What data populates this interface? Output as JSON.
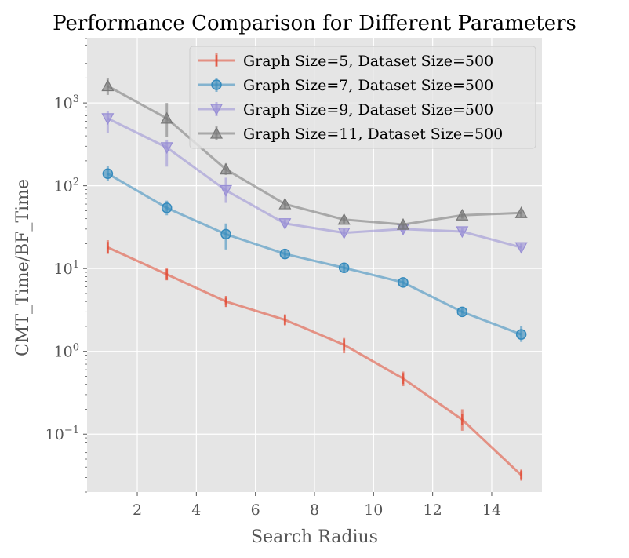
{
  "chart_data": {
    "type": "line",
    "title": "Performance Comparison for Different Parameters",
    "xlabel": "Search Radius",
    "ylabel": "CMT_Time/BF_Time",
    "yscale": "log",
    "xlim": [
      0.3,
      15.7
    ],
    "ylim": [
      0.02,
      6000
    ],
    "x": [
      1,
      3,
      5,
      7,
      9,
      11,
      13,
      15
    ],
    "xticks": [
      2,
      4,
      6,
      8,
      10,
      12,
      14
    ],
    "yticks": [
      {
        "value": 0.1,
        "base": "10",
        "exp": "−1"
      },
      {
        "value": 1,
        "base": "10",
        "exp": "0"
      },
      {
        "value": 10,
        "base": "10",
        "exp": "1"
      },
      {
        "value": 100,
        "base": "10",
        "exp": "2"
      },
      {
        "value": 1000,
        "base": "10",
        "exp": "3"
      }
    ],
    "grid": true,
    "legend_position": "top-right",
    "series": [
      {
        "name": "Graph Size=5, Dataset Size=500",
        "color": "#E24A33",
        "marker": "|",
        "values": [
          18,
          8.5,
          4.0,
          2.4,
          1.2,
          0.47,
          0.15,
          0.032
        ],
        "err_low": [
          15,
          7.2,
          3.7,
          2.1,
          0.95,
          0.38,
          0.11,
          0.029
        ],
        "err_high": [
          22,
          10,
          4.4,
          2.7,
          1.45,
          0.57,
          0.2,
          0.036
        ]
      },
      {
        "name": "Graph Size=7, Dataset Size=500",
        "color": "#348ABD",
        "marker": "o",
        "values": [
          140,
          54,
          26,
          15,
          10.2,
          6.8,
          3.0,
          1.6
        ],
        "err_low": [
          115,
          44,
          17,
          13.5,
          9.2,
          6.2,
          2.7,
          1.3
        ],
        "err_high": [
          175,
          66,
          35,
          16.5,
          11.2,
          7.4,
          3.4,
          2.0
        ]
      },
      {
        "name": "Graph Size=9, Dataset Size=500",
        "color": "#988ED5",
        "marker": "v",
        "values": [
          650,
          290,
          88,
          35,
          27,
          30,
          28,
          18
        ],
        "err_low": [
          430,
          170,
          62,
          31,
          24,
          27,
          25,
          16
        ],
        "err_high": [
          800,
          360,
          125,
          39,
          30,
          33,
          31,
          20
        ]
      },
      {
        "name": "Graph Size=11, Dataset Size=500",
        "color": "#777777",
        "marker": "^",
        "values": [
          1600,
          650,
          158,
          60,
          39,
          34,
          44,
          47
        ],
        "err_low": [
          1250,
          390,
          135,
          53,
          35,
          30,
          40,
          42
        ],
        "err_high": [
          2000,
          1000,
          185,
          68,
          43,
          38,
          48,
          53
        ]
      }
    ]
  }
}
